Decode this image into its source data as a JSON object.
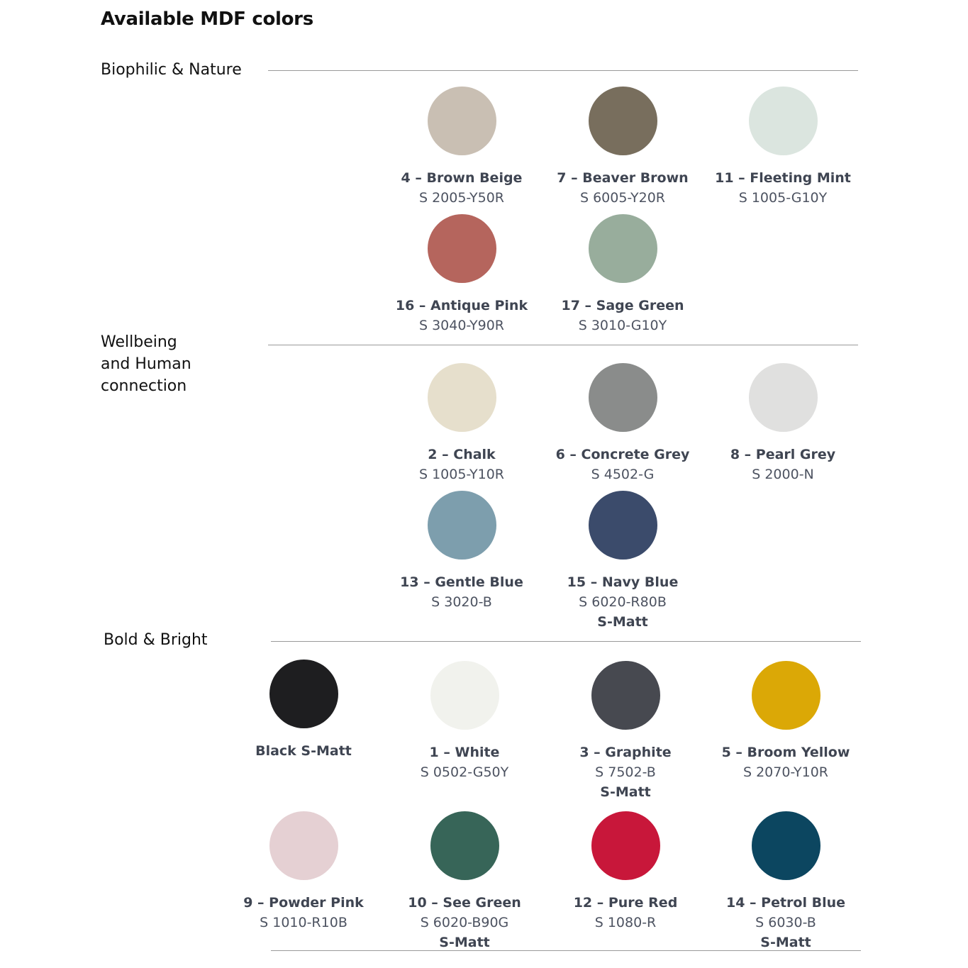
{
  "title": "Available MDF colors",
  "sections": [
    {
      "label": "Biophilic & Nature",
      "swatches": [
        {
          "name": "4 – Brown Beige",
          "code": "S 2005-Y50R",
          "color": "#c9bfb3"
        },
        {
          "name": "7 – Beaver Brown",
          "code": "S 6005-Y20R",
          "color": "#786e5d"
        },
        {
          "name": "11 – Fleeting Mint",
          "code": "S 1005-G10Y",
          "color": "#dbe5df"
        },
        {
          "name": "16 – Antique Pink",
          "code": "S 3040-Y90R",
          "color": "#b5655d"
        },
        {
          "name": "17 – Sage Green",
          "code": "S 3010-G10Y",
          "color": "#98ad9c"
        }
      ]
    },
    {
      "label": "Wellbeing and Human connection",
      "swatches": [
        {
          "name": "2 – Chalk",
          "code": "S 1005-Y10R",
          "color": "#e6dfcc"
        },
        {
          "name": "6 – Concrete Grey",
          "code": "S 4502-G",
          "color": "#8a8c8b"
        },
        {
          "name": "8 – Pearl Grey",
          "code": "S 2000-N",
          "color": "#e0e0df"
        },
        {
          "name": "13 – Gentle Blue",
          "code": "S 3020-B",
          "color": "#7d9ead"
        },
        {
          "name": "15 – Navy Blue",
          "code": "S 6020-R80B",
          "extra": "S-Matt",
          "color": "#3b4b6b"
        }
      ]
    },
    {
      "label": "Bold & Bright",
      "swatches": [
        {
          "name": "Black S-Matt",
          "code": "",
          "color": "#1e1e20"
        },
        {
          "name": "1 – White",
          "code": "S 0502-G50Y",
          "color": "#f1f2ed"
        },
        {
          "name": "3 – Graphite",
          "code": "S 7502-B",
          "extra": "S-Matt",
          "color": "#474950"
        },
        {
          "name": "5 – Broom Yellow",
          "code": "S 2070-Y10R",
          "color": "#dba806"
        },
        {
          "name": "9 – Powder Pink",
          "code": "S 1010-R10B",
          "color": "#e5d0d3"
        },
        {
          "name": "10 – See Green",
          "code": "S 6020-B90G",
          "extra": "S-Matt",
          "color": "#376558"
        },
        {
          "name": "12 – Pure Red",
          "code": "S 1080-R",
          "color": "#c8173a"
        },
        {
          "name": "14 – Petrol Blue",
          "code": "S 6030-B",
          "extra": "S-Matt",
          "color": "#0c4660"
        }
      ]
    }
  ]
}
